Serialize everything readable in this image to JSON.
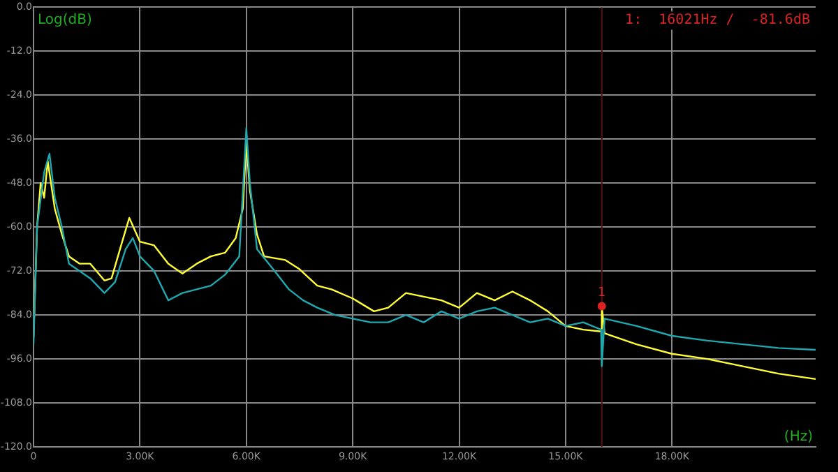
{
  "chart_data": {
    "type": "line",
    "ylabel": "Log(dB)",
    "xlabel": "(Hz)",
    "xlim": [
      0,
      22050
    ],
    "ylim": [
      -120,
      0
    ],
    "xticks": [
      {
        "value": 0,
        "label": "0"
      },
      {
        "value": 3000,
        "label": "3.00K"
      },
      {
        "value": 6000,
        "label": "6.00K"
      },
      {
        "value": 9000,
        "label": "9.00K"
      },
      {
        "value": 12000,
        "label": "12.00K"
      },
      {
        "value": 15000,
        "label": "15.00K"
      },
      {
        "value": 18000,
        "label": "18.00K"
      }
    ],
    "yticks": [
      {
        "value": 0,
        "label": "0.0"
      },
      {
        "value": -12,
        "label": "-12.0"
      },
      {
        "value": -24,
        "label": "-24.0"
      },
      {
        "value": -36,
        "label": "-36.0"
      },
      {
        "value": -48,
        "label": "-48.0"
      },
      {
        "value": -60,
        "label": "-60.0"
      },
      {
        "value": -72,
        "label": "-72.0"
      },
      {
        "value": -84,
        "label": "-84.0"
      },
      {
        "value": -96,
        "label": "-96.0"
      },
      {
        "value": -108,
        "label": "-108.0"
      },
      {
        "value": -120,
        "label": "-120.0"
      }
    ],
    "grid": true,
    "legend": false,
    "marker": "none",
    "line_style": "solid",
    "series": [
      {
        "color": "#20a8b0",
        "x": [
          0,
          100,
          300,
          450,
          600,
          800,
          1000,
          1300,
          1600,
          2000,
          2300,
          2600,
          2800,
          3000,
          3400,
          3800,
          4200,
          4600,
          5000,
          5400,
          5800,
          6000,
          6100,
          6300,
          6800,
          7200,
          7600,
          8000,
          8500,
          9000,
          9500,
          10000,
          10500,
          11000,
          11500,
          12000,
          12500,
          13000,
          13500,
          14000,
          14500,
          15000,
          15500,
          16000,
          16021,
          16100,
          17000,
          18000,
          19000,
          20000,
          21000,
          22050
        ],
        "values": [
          -92,
          -60,
          -45,
          -40,
          -52,
          -60,
          -70,
          -72,
          -74,
          -78,
          -75,
          -66,
          -63,
          -68,
          -72,
          -80,
          -78,
          -77,
          -76,
          -73,
          -68,
          -33,
          -48,
          -66,
          -72,
          -77,
          -80,
          -82,
          -84,
          -85,
          -86,
          -86,
          -84,
          -86,
          -83,
          -85,
          -83,
          -82,
          -84,
          -86,
          -85,
          -87,
          -86,
          -88,
          -98,
          -85,
          -87,
          -89.7,
          -91,
          -92,
          -93,
          -93.5
        ]
      },
      {
        "color": "#ffff33",
        "x": [
          0,
          100,
          200,
          300,
          400,
          600,
          800,
          1000,
          1300,
          1600,
          2000,
          2200,
          2500,
          2700,
          3000,
          3400,
          3800,
          4200,
          4600,
          5000,
          5400,
          5700,
          5900,
          6000,
          6100,
          6300,
          6500,
          7100,
          7500,
          8000,
          8400,
          9000,
          9600,
          10000,
          10500,
          11000,
          11500,
          12000,
          12500,
          13000,
          13500,
          14000,
          14500,
          15000,
          15500,
          16000,
          16021,
          16100,
          17000,
          18000,
          19000,
          20000,
          21000,
          22050
        ],
        "values": [
          -90,
          -60,
          -48,
          -52,
          -42,
          -55,
          -62,
          -68,
          -70,
          -70,
          -74.6,
          -74,
          -64,
          -57.5,
          -64,
          -65,
          -70,
          -72.7,
          -70,
          -68,
          -67,
          -63,
          -55,
          -37,
          -50,
          -62,
          -68,
          -69,
          -71.5,
          -76,
          -77,
          -79.5,
          -83,
          -82,
          -78,
          -79,
          -80,
          -82,
          -78,
          -80,
          -77.6,
          -80,
          -83,
          -87,
          -88,
          -88.5,
          -81.6,
          -89,
          -92,
          -94.6,
          -96,
          -98,
          -100,
          -101.5
        ]
      }
    ],
    "ref_lines": [
      {
        "axis": "x",
        "value": 16021,
        "color": "#5a1010"
      }
    ],
    "annotations": [
      {
        "text": "1",
        "x": 16021,
        "y": -81.6
      },
      "1:  16021Hz /  -81.6dB"
    ]
  }
}
